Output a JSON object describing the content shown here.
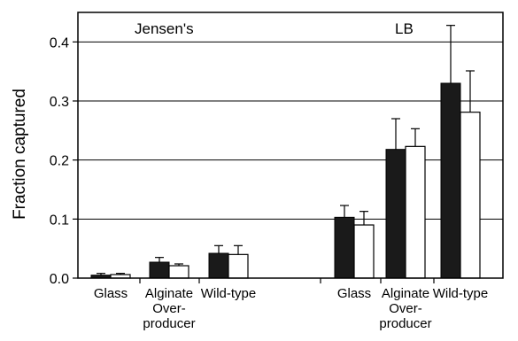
{
  "chart_data": {
    "type": "bar",
    "ylabel": "Fraction captured",
    "ylim": [
      0,
      0.45
    ],
    "yticks": [
      "0.0",
      "0.1",
      "0.2",
      "0.3",
      "0.4"
    ],
    "grid": "horizontal",
    "groups": [
      {
        "label": "Jensen's",
        "categories": [
          {
            "label": [
              "Glass"
            ],
            "dark": 0.005,
            "dark_err": 0.003,
            "light": 0.006,
            "light_err": 0.002
          },
          {
            "label": [
              "Alginate",
              "Over-",
              "producer"
            ],
            "dark": 0.027,
            "dark_err": 0.008,
            "light": 0.021,
            "light_err": 0.003
          },
          {
            "label": [
              "Wild-type"
            ],
            "dark": 0.042,
            "dark_err": 0.013,
            "light": 0.04,
            "light_err": 0.015
          }
        ]
      },
      {
        "label": "LB",
        "categories": [
          {
            "label": [
              "Glass"
            ],
            "dark": 0.103,
            "dark_err": 0.02,
            "light": 0.09,
            "light_err": 0.023
          },
          {
            "label": [
              "Alginate",
              "Over-",
              "producer"
            ],
            "dark": 0.218,
            "dark_err": 0.052,
            "light": 0.223,
            "light_err": 0.03
          },
          {
            "label": [
              "Wild-type"
            ],
            "dark": 0.33,
            "dark_err": 0.098,
            "light": 0.281,
            "light_err": 0.07
          }
        ]
      }
    ]
  }
}
